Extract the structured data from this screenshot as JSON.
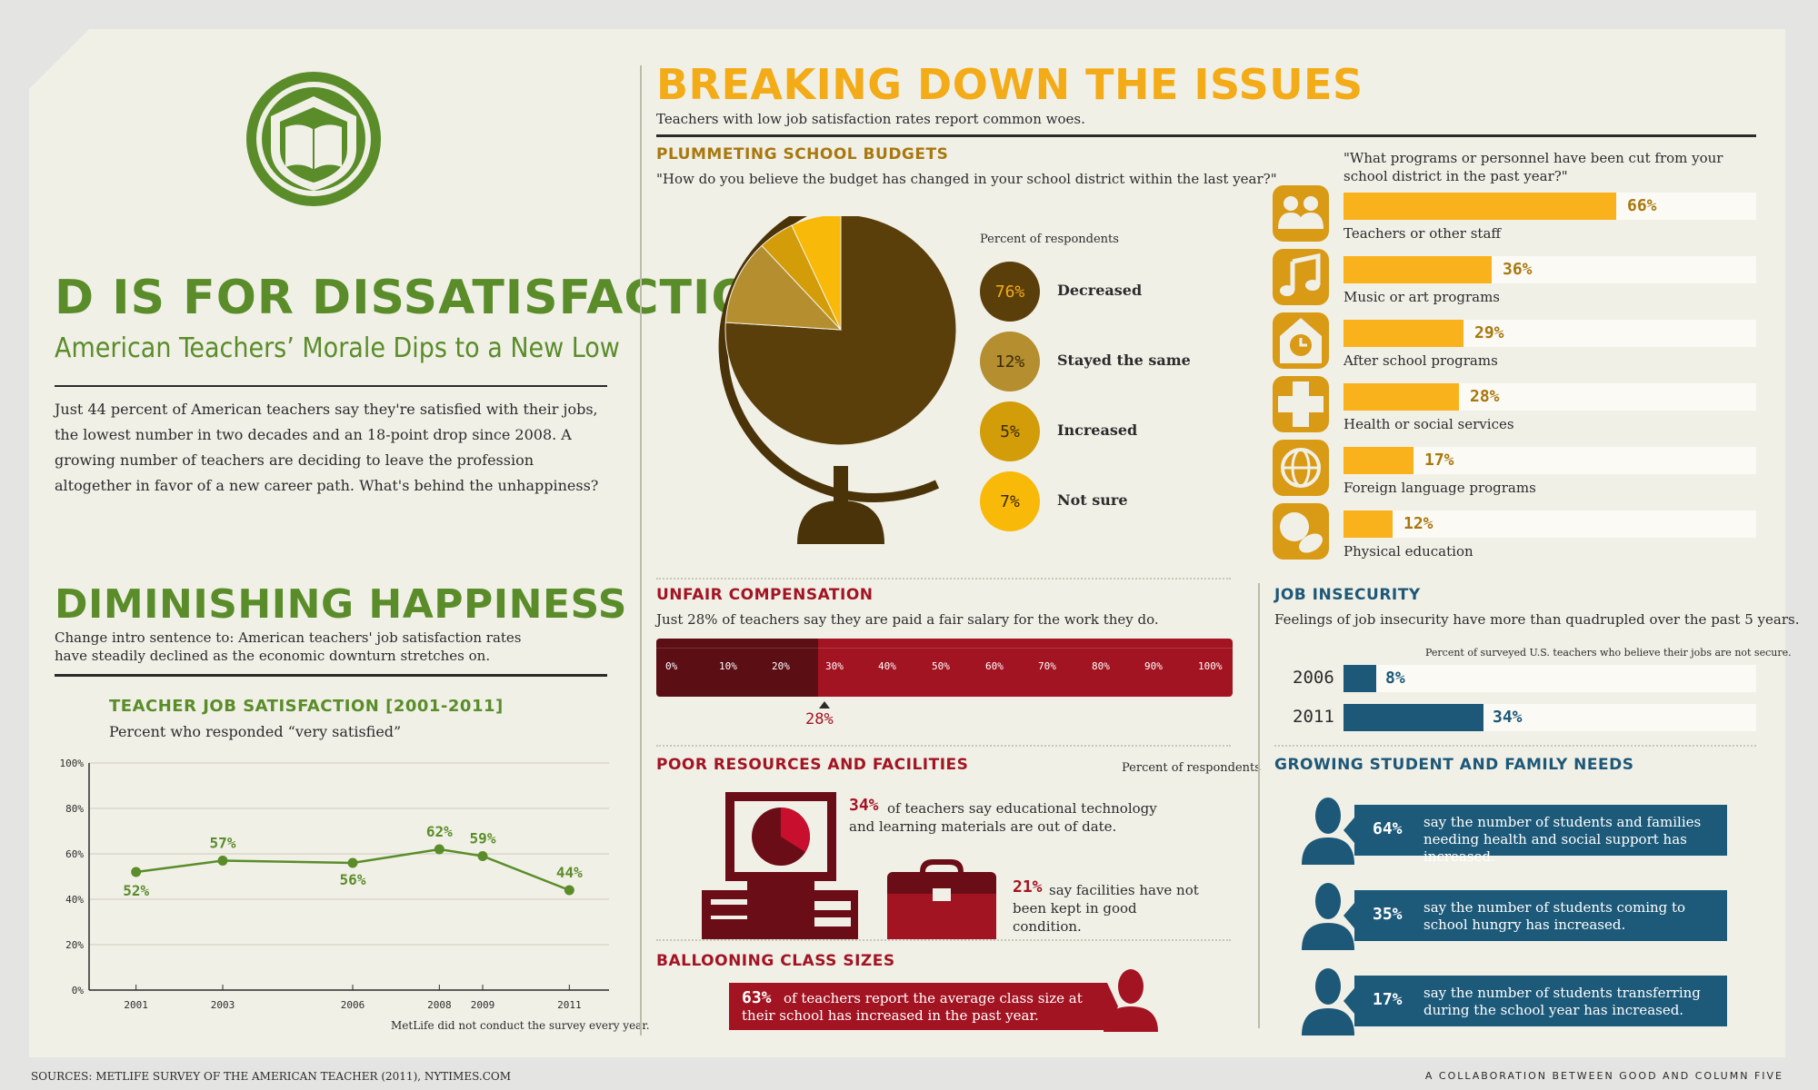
{
  "left": {
    "title": "D IS FOR DISSATISFACTION",
    "subtitle": "American Teachers’ Morale Dips to a New Low",
    "intro": "Just 44 percent of American teachers say they're satisfied with their jobs, the lowest number in two decades and an 18-point drop since 2008. A growing number of teachers are deciding to leave the profession altogether in favor of a new career path. What's behind the unhappiness?",
    "happiness_title": "DIMINISHING HAPPINESS",
    "happiness_intro": "Change intro sentence to: American teachers' job satisfaction rates have steadily declined as the economic downturn stretches on.",
    "chart_title": "TEACHER JOB SATISFACTION [2001-2011]",
    "chart_subtitle": "Percent who responded “very satisfied”",
    "chart_note": "MetLife did not conduct the survey every year."
  },
  "chart_data": {
    "type": "line",
    "title": "TEACHER JOB SATISFACTION [2001-2011]",
    "subtitle": "Percent who responded “very satisfied”",
    "x": [
      2001,
      2003,
      2006,
      2008,
      2009,
      2011
    ],
    "values": [
      52,
      57,
      56,
      62,
      59,
      44
    ],
    "point_labels": [
      "52%",
      "57%",
      "56%",
      "62%",
      "59%",
      "44%"
    ],
    "ylim": [
      0,
      100
    ],
    "y_ticks": [
      "0%",
      "20%",
      "40%",
      "60%",
      "80%",
      "100%"
    ],
    "color": "#5a8d2a",
    "grid": true
  },
  "issues": {
    "title": "BREAKING DOWN THE ISSUES",
    "subtitle": "Teachers with low job satisfaction rates report common woes."
  },
  "budgets": {
    "title": "PLUMMETING SCHOOL BUDGETS",
    "question": "\"How do you believe the budget has changed in your school district within the last year?\"",
    "legend_caption": "Percent of respondents",
    "slices": [
      {
        "label": "Decreased",
        "value": 76,
        "pct": "76%",
        "color": "#5b3f0a"
      },
      {
        "label": "Stayed the same",
        "value": 12,
        "pct": "12%",
        "color": "#b48e2f"
      },
      {
        "label": "Increased",
        "value": 5,
        "pct": "5%",
        "color": "#d39d09"
      },
      {
        "label": "Not sure",
        "value": 7,
        "pct": "7%",
        "color": "#f8b909"
      }
    ]
  },
  "cuts": {
    "question": "\"What programs or personnel have been cut from your school district in the past year?\"",
    "items": [
      {
        "label": "Teachers or other staff",
        "value": 66,
        "pct": "66%",
        "icon": "people-icon"
      },
      {
        "label": "Music or art programs",
        "value": 36,
        "pct": "36%",
        "icon": "music-note-icon"
      },
      {
        "label": "After school programs",
        "value": 29,
        "pct": "29%",
        "icon": "schoolhouse-clock-icon"
      },
      {
        "label": "Health or social services",
        "value": 28,
        "pct": "28%",
        "icon": "health-cross-icon"
      },
      {
        "label": "Foreign language programs",
        "value": 17,
        "pct": "17%",
        "icon": "globe-icon"
      },
      {
        "label": "Physical education",
        "value": 12,
        "pct": "12%",
        "icon": "sports-balls-icon"
      }
    ]
  },
  "compensation": {
    "title": "UNFAIR COMPENSATION",
    "text": "Just 28% of teachers say they are paid a fair salary for the work they do.",
    "value": 28,
    "marker_label": "28%",
    "ticks": [
      "0%",
      "10%",
      "20%",
      "30%",
      "40%",
      "50%",
      "60%",
      "70%",
      "80%",
      "90%",
      "100%"
    ]
  },
  "resources": {
    "title": "POOR RESOURCES AND FACILITIES",
    "caption": "Percent of respondents",
    "tech_pct": "34%",
    "tech_value": 34,
    "tech_text": "of teachers say educational technology and learning materials are out of date.",
    "facil_pct": "21%",
    "facil_text": "say facilities have not been kept in good condition."
  },
  "class_sizes": {
    "title": "BALLOONING CLASS SIZES",
    "pct": "63%",
    "text": "of teachers report the average class size at their school has increased in the past year."
  },
  "insecurity": {
    "title": "JOB INSECURITY",
    "text": "Feelings of job insecurity have more than quadrupled over the past 5 years.",
    "caption": "Percent of surveyed U.S. teachers who believe their jobs are not secure.",
    "rows": [
      {
        "year": "2006",
        "value": 8,
        "pct": "8%"
      },
      {
        "year": "2011",
        "value": 34,
        "pct": "34%"
      }
    ]
  },
  "needs": {
    "title": "GROWING STUDENT AND FAMILY NEEDS",
    "items": [
      {
        "pct": "64%",
        "text": "say the number of students and families needing health and social support has increased."
      },
      {
        "pct": "35%",
        "text": "say the number of students coming to school hungry has increased."
      },
      {
        "pct": "17%",
        "text": "say the number of students transferring during the school year has increased."
      }
    ]
  },
  "footer": {
    "sources": "SOURCES: METLIFE SURVEY OF THE AMERICAN TEACHER (2011), NYTIMES.COM",
    "credit": "A COLLABORATION BETWEEN GOOD AND COLUMN FIVE"
  },
  "colors": {
    "green": "#5a8d2a",
    "gold": "#f3ab17",
    "brown": "#5b3f0a",
    "red": "#a31422",
    "blue": "#1d5878",
    "paper": "#f1f0e7"
  }
}
